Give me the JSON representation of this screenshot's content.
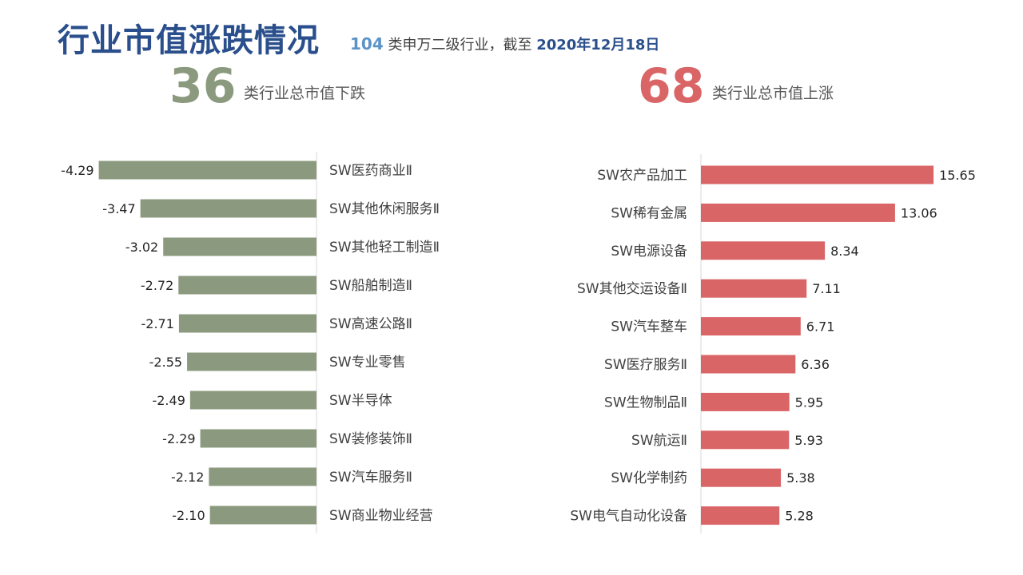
{
  "header": {
    "title": "行业市值涨跌情况",
    "subtitle_count": "104",
    "subtitle_text": " 类申万二级行业，截至 ",
    "subtitle_date": "2020年12月18日"
  },
  "summary": {
    "down_count": "36",
    "down_label": "类行业总市值下跌",
    "up_count": "68",
    "up_label": "类行业总市值上涨"
  },
  "colors": {
    "title": "#2a4f8c",
    "down_bar": "#8b9a7e",
    "up_bar": "#d96566",
    "count_accent": "#5b93c7"
  },
  "chart_data": [
    {
      "type": "bar",
      "orientation": "horizontal",
      "categories": [
        "SW医药商业Ⅱ",
        "SW其他休闲服务Ⅱ",
        "SW其他轻工制造Ⅱ",
        "SW船舶制造Ⅱ",
        "SW高速公路Ⅱ",
        "SW专业零售",
        "SW半导体",
        "SW装修装饰Ⅱ",
        "SW汽车服务Ⅱ",
        "SW商业物业经营"
      ],
      "values": [
        -4.29,
        -3.47,
        -3.02,
        -2.72,
        -2.71,
        -2.55,
        -2.49,
        -2.29,
        -2.12,
        -2.1
      ],
      "data_labels": [
        "-4.29",
        "-3.47",
        "-3.02",
        "-2.72",
        "-2.71",
        "-2.55",
        "-2.49",
        "-2.29",
        "-2.12",
        "-2.10"
      ],
      "color": "#8b9a7e",
      "legend": "none",
      "grid": false
    },
    {
      "type": "bar",
      "orientation": "horizontal",
      "categories": [
        "SW农产品加工",
        "SW稀有金属",
        "SW电源设备",
        "SW其他交运设备Ⅱ",
        "SW汽车整车",
        "SW医疗服务Ⅱ",
        "SW生物制品Ⅱ",
        "SW航运Ⅱ",
        "SW化学制药",
        "SW电气自动化设备"
      ],
      "values": [
        15.65,
        13.06,
        8.34,
        7.11,
        6.71,
        6.36,
        5.95,
        5.93,
        5.38,
        5.28
      ],
      "data_labels": [
        "15.65",
        "13.06",
        "8.34",
        "7.11",
        "6.71",
        "6.36",
        "5.95",
        "5.93",
        "5.38",
        "5.28"
      ],
      "color": "#d96566",
      "legend": "none",
      "grid": false
    }
  ]
}
